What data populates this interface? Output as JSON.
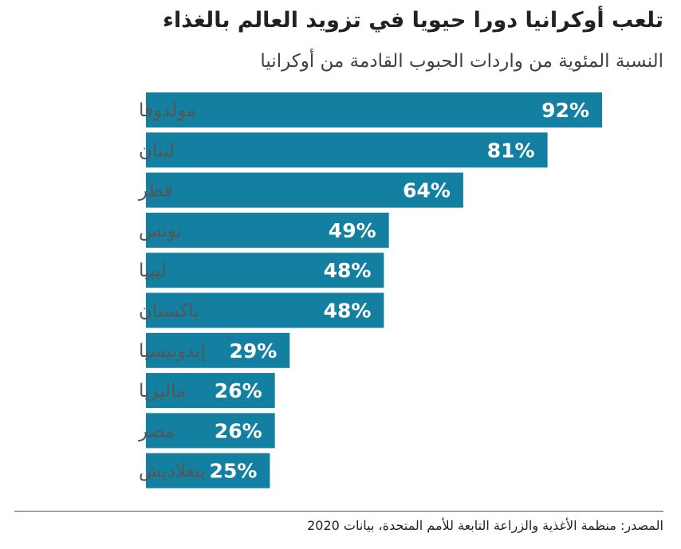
{
  "title": "تلعب أوكرانيا دورا حيويا في تزويد العالم بالغذاء",
  "subtitle": "النسبة المئوية من واردات الحبوب القادمة من أوكرانيا",
  "source": "المصدر: منظمة الأغذية والزراعة التابعة للأمم المتحدة، بيانات 2020",
  "colors": {
    "bar": "#1380A1",
    "bar_label": "#ffffff",
    "category_label": "#555555"
  },
  "chart_data": {
    "type": "bar",
    "orientation": "horizontal",
    "categories": [
      "مولدوفا",
      "لبنان",
      "قطر",
      "تونس",
      "ليبيا",
      "باكستان",
      "إندونيسيا",
      "ماليزيا",
      "مصر",
      "بنغلاديش"
    ],
    "values": [
      92,
      81,
      64,
      49,
      48,
      48,
      29,
      26,
      26,
      25
    ],
    "value_labels": [
      "92%",
      "81%",
      "64%",
      "49%",
      "48%",
      "48%",
      "29%",
      "26%",
      "26%",
      "25%"
    ],
    "title": "تلعب أوكرانيا دورا حيويا في تزويد العالم بالغذاء",
    "subtitle": "النسبة المئوية من واردات الحبوب القادمة من أوكرانيا",
    "xlabel": "",
    "ylabel": "",
    "xlim": [
      0,
      92
    ],
    "grid": false,
    "legend": "none"
  }
}
